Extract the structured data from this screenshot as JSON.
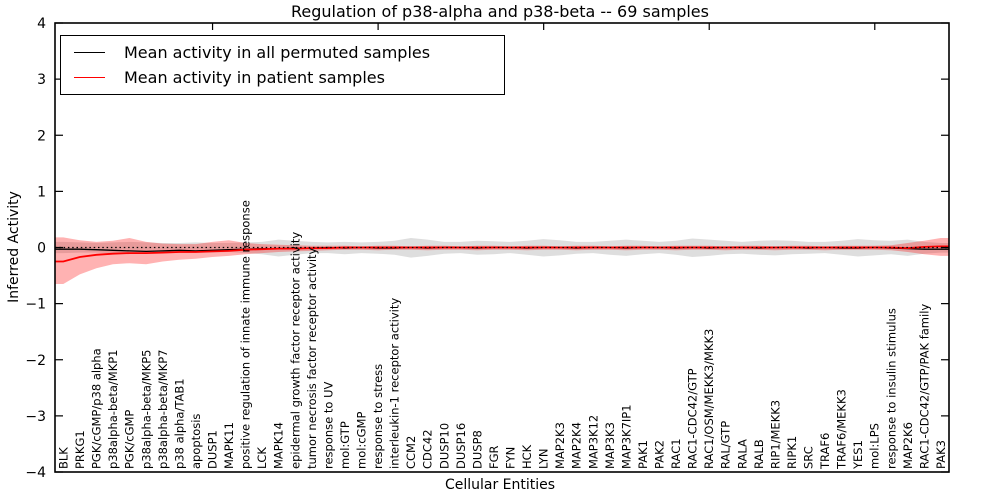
{
  "figure": {
    "title": "Regulation of p38-alpha and p38-beta -- 69 samples",
    "xlabel": "Cellular Entities",
    "ylabel": "Inferred Activity"
  },
  "legend": {
    "items": [
      {
        "label": "Mean activity in all permuted samples",
        "color": "#000000"
      },
      {
        "label": "Mean activity in patient samples",
        "color": "#ff0000"
      }
    ]
  },
  "chart_data": {
    "type": "line",
    "title": "Regulation of p38-alpha and p38-beta -- 69 samples",
    "xlabel": "Cellular Entities",
    "ylabel": "Inferred Activity",
    "ylim": [
      -4,
      4
    ],
    "yticks": [
      4,
      3,
      2,
      1,
      0,
      -1,
      -2,
      -3,
      -4
    ],
    "grid": false,
    "legend_position": "upper left",
    "zero_line_style": "dotted",
    "categories": [
      "BLK",
      "PRKG1",
      "PGK/cGMP/p38 alpha",
      "p38alpha-beta/MKP1",
      "PGK/cGMP",
      "p38alpha-beta/MKP5",
      "p38alpha-beta/MKP7",
      "p38 alpha/TAB1",
      "apoptosis",
      "DUSP1",
      "MAPK11",
      "positive regulation of innate immune response",
      "LCK",
      "MAPK14",
      "epidermal growth factor receptor activity",
      "tumor necrosis factor receptor activity",
      "response to UV",
      "mol:GTP",
      "mol:cGMP",
      "response to stress",
      "interleukin-1 receptor activity",
      "CCM2",
      "CDC42",
      "DUSP10",
      "DUSP16",
      "DUSP8",
      "FGR",
      "FYN",
      "HCK",
      "LYN",
      "MAP2K3",
      "MAP2K4",
      "MAP3K12",
      "MAP3K3",
      "MAP3K7IP1",
      "PAK1",
      "PAK2",
      "RAC1",
      "RAC1-CDC42/GTP",
      "RAC1/OSM/MEKK3/MKK3",
      "RAL/GTP",
      "RALA",
      "RALB",
      "RIP1/MEKK3",
      "RIPK1",
      "SRC",
      "TRAF6",
      "TRAF6/MEKK3",
      "YES1",
      "mol:LPS",
      "response to insulin stimulus",
      "MAP2K6",
      "RAC1-CDC42/GTP/PAK family",
      "PAK3"
    ],
    "series": [
      {
        "name": "Mean activity in all permuted samples",
        "color": "#000000",
        "style": "solid",
        "values": [
          -0.03,
          -0.03,
          -0.04,
          -0.05,
          -0.06,
          -0.07,
          -0.06,
          -0.05,
          -0.06,
          -0.05,
          -0.04,
          -0.03,
          -0.02,
          -0.02,
          -0.01,
          -0.01,
          0,
          -0.01,
          0,
          -0.01,
          -0.01,
          0,
          -0.01,
          0,
          0,
          -0.01,
          0,
          0,
          -0.01,
          0,
          0,
          -0.01,
          0,
          0,
          -0.01,
          0,
          0,
          -0.01,
          0,
          -0.01,
          0,
          0,
          -0.01,
          0,
          0,
          -0.01,
          0,
          -0.01,
          -0.01,
          0,
          -0.01,
          -0.02,
          -0.03,
          -0.03
        ]
      },
      {
        "name": "Mean activity in patient samples",
        "color": "#ff0000",
        "style": "solid",
        "values": [
          -0.25,
          -0.17,
          -0.13,
          -0.11,
          -0.1,
          -0.1,
          -0.09,
          -0.08,
          -0.08,
          -0.07,
          -0.06,
          -0.04,
          -0.03,
          -0.02,
          -0.02,
          -0.01,
          -0.01,
          0,
          0,
          0,
          0,
          0,
          0,
          0,
          0,
          0,
          0,
          0,
          0,
          0,
          0,
          0,
          0,
          0,
          0,
          0,
          0,
          0,
          0,
          0,
          0,
          0,
          0,
          0,
          0,
          0,
          0,
          0,
          0,
          0,
          0,
          -0.01,
          0.01,
          0.02
        ]
      }
    ],
    "bands": [
      {
        "name": "permuted-samples-range",
        "color": "#000000",
        "opacity": 0.13,
        "upper": [
          0.1,
          0.09,
          0.08,
          0.09,
          0.1,
          0.09,
          0.08,
          0.08,
          0.09,
          0.08,
          0.08,
          0.09,
          0.1,
          0.14,
          0.12,
          0.1,
          0.09,
          0.1,
          0.09,
          0.1,
          0.12,
          0.17,
          0.14,
          0.1,
          0.1,
          0.12,
          0.11,
          0.1,
          0.12,
          0.15,
          0.13,
          0.1,
          0.1,
          0.12,
          0.14,
          0.12,
          0.1,
          0.12,
          0.16,
          0.14,
          0.12,
          0.1,
          0.12,
          0.13,
          0.12,
          0.1,
          0.1,
          0.12,
          0.15,
          0.13,
          0.12,
          0.14,
          0.1,
          0.08
        ],
        "lower": [
          -0.1,
          -0.09,
          -0.09,
          -0.1,
          -0.11,
          -0.1,
          -0.09,
          -0.08,
          -0.09,
          -0.09,
          -0.08,
          -0.1,
          -0.12,
          -0.16,
          -0.13,
          -0.1,
          -0.1,
          -0.12,
          -0.1,
          -0.11,
          -0.13,
          -0.18,
          -0.15,
          -0.11,
          -0.1,
          -0.13,
          -0.12,
          -0.1,
          -0.13,
          -0.16,
          -0.14,
          -0.11,
          -0.1,
          -0.13,
          -0.15,
          -0.12,
          -0.1,
          -0.13,
          -0.17,
          -0.15,
          -0.12,
          -0.11,
          -0.13,
          -0.14,
          -0.12,
          -0.11,
          -0.1,
          -0.13,
          -0.16,
          -0.14,
          -0.12,
          -0.15,
          -0.11,
          -0.09
        ]
      },
      {
        "name": "patient-samples-range",
        "color": "#ff0000",
        "opacity": 0.3,
        "upper": [
          0.18,
          0.13,
          0.1,
          0.12,
          0.17,
          0.1,
          0.07,
          0.06,
          0.06,
          0.1,
          0.13,
          0.08,
          0.06,
          0.05,
          0.04,
          0.03,
          0.03,
          0.03,
          0.02,
          0.03,
          0.03,
          0.02,
          0.03,
          0.03,
          0.02,
          0.03,
          0.03,
          0.02,
          0.03,
          0.03,
          0.02,
          0.03,
          0.03,
          0.02,
          0.03,
          0.03,
          0.02,
          0.03,
          0.03,
          0.03,
          0.02,
          0.03,
          0.03,
          0.02,
          0.03,
          0.03,
          0.02,
          0.03,
          0.03,
          0.03,
          0.04,
          0.08,
          0.12,
          0.17
        ],
        "lower": [
          -0.65,
          -0.48,
          -0.37,
          -0.3,
          -0.28,
          -0.3,
          -0.25,
          -0.22,
          -0.2,
          -0.17,
          -0.15,
          -0.12,
          -0.1,
          -0.08,
          -0.07,
          -0.06,
          -0.05,
          -0.04,
          -0.04,
          -0.05,
          -0.04,
          -0.04,
          -0.05,
          -0.04,
          -0.04,
          -0.05,
          -0.04,
          -0.04,
          -0.05,
          -0.04,
          -0.04,
          -0.05,
          -0.04,
          -0.04,
          -0.05,
          -0.04,
          -0.04,
          -0.05,
          -0.04,
          -0.04,
          -0.05,
          -0.04,
          -0.04,
          -0.05,
          -0.04,
          -0.04,
          -0.05,
          -0.04,
          -0.04,
          -0.04,
          -0.05,
          -0.08,
          -0.12,
          -0.15
        ]
      }
    ]
  }
}
